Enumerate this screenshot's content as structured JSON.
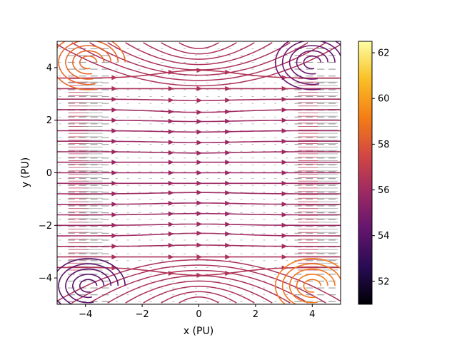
{
  "chart_data": {
    "type": "streamplot",
    "xlabel": "x (PU)",
    "ylabel": "y (PU)",
    "xlim": [
      -5,
      5
    ],
    "ylim": [
      -5,
      5
    ],
    "xticks": [
      -4,
      -2,
      0,
      2,
      4
    ],
    "yticks": [
      -4,
      -2,
      0,
      2,
      4
    ],
    "grid": false,
    "colorbar": {
      "range": [
        51,
        62.5
      ],
      "ticks": [
        52,
        54,
        56,
        58,
        60,
        62
      ],
      "colormap": "inferno"
    },
    "stream_color_typical": "#c2404f",
    "conductor_columns_x": [
      -4.25,
      -3.75,
      3.85,
      4.55
    ],
    "streamlines": [
      {
        "y_left": 3.6,
        "y_mid": 3.9,
        "value": 56.6
      },
      {
        "y_left": 3.2,
        "y_mid": 3.2,
        "value": 56.3
      },
      {
        "y_left": 2.8,
        "y_mid": 2.75,
        "value": 56.1
      },
      {
        "y_left": 2.4,
        "y_mid": 2.3,
        "value": 56.0
      },
      {
        "y_left": 2.0,
        "y_mid": 1.95,
        "value": 55.9
      },
      {
        "y_left": 1.6,
        "y_mid": 1.55,
        "value": 55.9
      },
      {
        "y_left": 1.2,
        "y_mid": 1.15,
        "value": 55.9
      },
      {
        "y_left": 0.8,
        "y_mid": 0.75,
        "value": 55.9
      },
      {
        "y_left": 0.4,
        "y_mid": 0.4,
        "value": 55.9
      },
      {
        "y_left": 0.0,
        "y_mid": 0.0,
        "value": 55.9
      },
      {
        "y_left": -0.4,
        "y_mid": -0.4,
        "value": 55.9
      },
      {
        "y_left": -0.8,
        "y_mid": -0.75,
        "value": 55.9
      },
      {
        "y_left": -1.2,
        "y_mid": -1.15,
        "value": 55.9
      },
      {
        "y_left": -1.6,
        "y_mid": -1.55,
        "value": 55.9
      },
      {
        "y_left": -2.0,
        "y_mid": -1.95,
        "value": 55.9
      },
      {
        "y_left": -2.4,
        "y_mid": -2.3,
        "value": 56.0
      },
      {
        "y_left": -2.8,
        "y_mid": -2.75,
        "value": 56.1
      },
      {
        "y_left": -3.2,
        "y_mid": -3.2,
        "value": 56.3
      },
      {
        "y_left": -3.6,
        "y_mid": -3.9,
        "value": 56.6
      }
    ],
    "corner_vortices": [
      {
        "x": -3.9,
        "y": 4.2,
        "value": 58.5
      },
      {
        "x": 4.0,
        "y": 4.2,
        "value": 54.5
      },
      {
        "x": -3.9,
        "y": -4.3,
        "value": 54.0
      },
      {
        "x": 4.0,
        "y": -4.3,
        "value": 59.0
      }
    ]
  }
}
